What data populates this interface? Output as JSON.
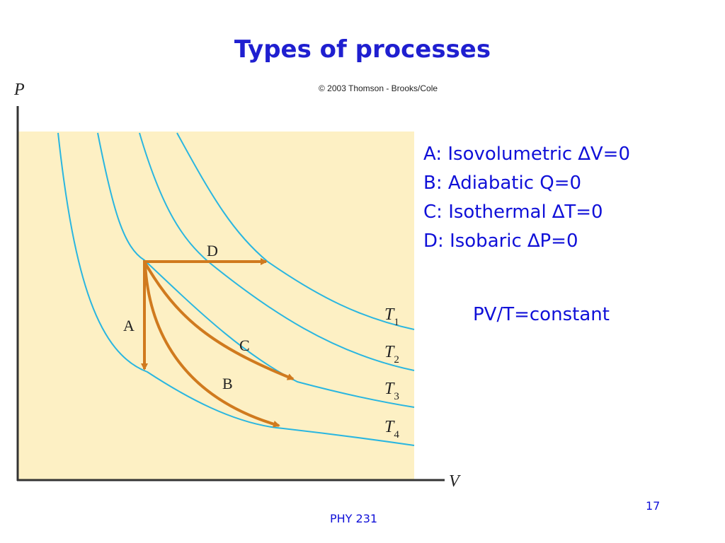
{
  "slide": {
    "title": "Types of processes",
    "footer": "PHY 231",
    "page_number": "17"
  },
  "figure": {
    "copyright": "© 2003 Thomson - Brooks/Cole",
    "axis_labels": {
      "y": "P",
      "x": "V"
    },
    "isotherms": [
      {
        "label": "T",
        "subscript": "1"
      },
      {
        "label": "T",
        "subscript": "2"
      },
      {
        "label": "T",
        "subscript": "3"
      },
      {
        "label": "T",
        "subscript": "4"
      }
    ],
    "process_labels": {
      "A": "A",
      "B": "B",
      "C": "C",
      "D": "D"
    },
    "colors": {
      "isotherm": "#2ab6e0",
      "process": "#d07a1e",
      "background": "#fdf0c4"
    }
  },
  "processes": [
    {
      "letter": "A",
      "name": "Isovolumetric",
      "condition": "∆V=0"
    },
    {
      "letter": "B",
      "name": "Adiabatic",
      "condition": "Q=0"
    },
    {
      "letter": "C",
      "name": "Isothermal",
      "condition": "∆T=0"
    },
    {
      "letter": "D",
      "name": "Isobaric",
      "condition": "∆P=0"
    }
  ],
  "gas_law": "PV/T=constant"
}
